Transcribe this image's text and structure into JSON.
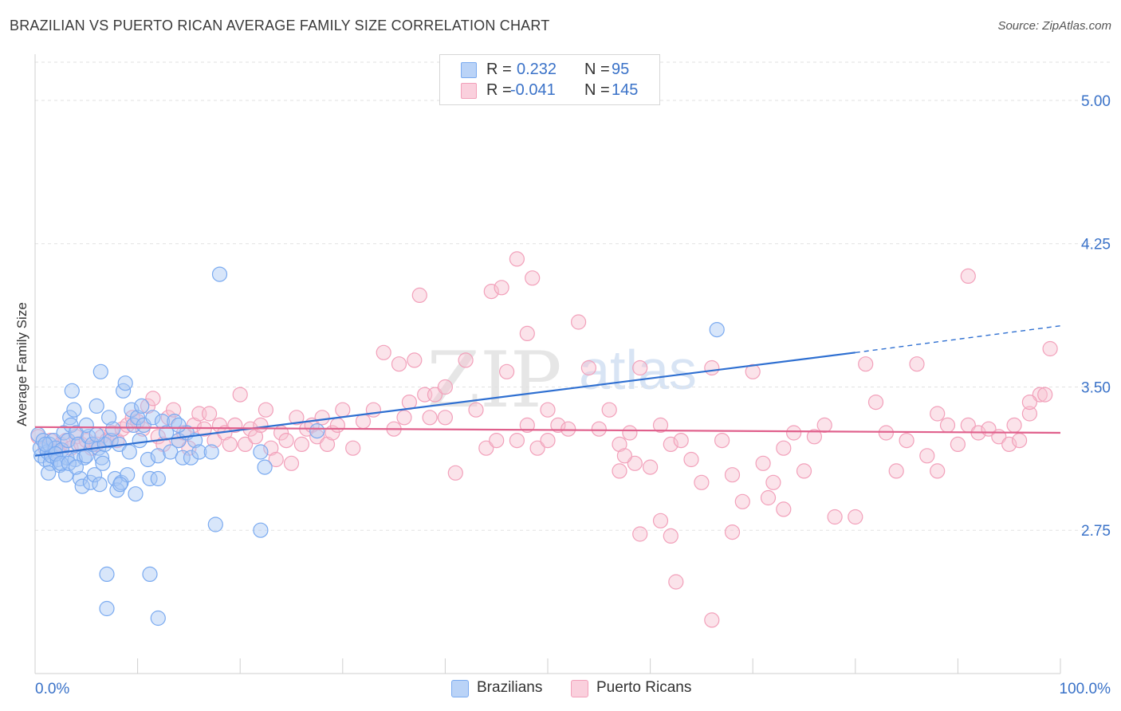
{
  "title": "BRAZILIAN VS PUERTO RICAN AVERAGE FAMILY SIZE CORRELATION CHART",
  "source": "Source: ZipAtlas.com",
  "watermark": {
    "zip": "ZIP",
    "atlas": "atlas"
  },
  "legend_top": [
    {
      "r_label": "R =",
      "r_value": "0.232",
      "n_label": "N =",
      "n_value": "95",
      "color": "#7aaaf0"
    },
    {
      "r_label": "R =",
      "r_value": "-0.041",
      "n_label": "N =",
      "n_value": "145",
      "color": "#f5a3bd"
    }
  ],
  "colors": {
    "blue_fill": "#a9c8f5",
    "blue_stroke": "#7aaaf0",
    "blue_line": "#2e6fd1",
    "pink_fill": "#f7c0d1",
    "pink_stroke": "#f2a0ba",
    "pink_line": "#e0608c",
    "axis_text": "#3a72c8",
    "grid": "#e2e2e2"
  },
  "chart_data": {
    "type": "scatter",
    "title": "BRAZILIAN VS PUERTO RICAN AVERAGE FAMILY SIZE CORRELATION CHART",
    "xlabel": "",
    "ylabel": "Average Family Size",
    "xlim": [
      0,
      100
    ],
    "ylim": [
      2.0,
      5.2
    ],
    "x_tick_labels": [
      "0.0%",
      "100.0%"
    ],
    "y_ticks": [
      2.75,
      3.5,
      4.25,
      5.0
    ],
    "y_tick_labels": [
      "2.75",
      "3.50",
      "4.25",
      "5.00"
    ],
    "grid": true,
    "legend_placement": "top-center",
    "series": [
      {
        "name": "Brazilians",
        "r": 0.232,
        "n": 95,
        "trend": {
          "x0": 0,
          "y0": 3.14,
          "x1": 80,
          "y1": 3.68,
          "dashed_to_x": 100,
          "dashed_y": 3.82
        },
        "points": [
          [
            0.3,
            3.25
          ],
          [
            0.5,
            3.18
          ],
          [
            0.6,
            3.14
          ],
          [
            0.8,
            3.22
          ],
          [
            1.0,
            3.12
          ],
          [
            1.2,
            3.16
          ],
          [
            1.4,
            3.2
          ],
          [
            1.5,
            3.1
          ],
          [
            1.6,
            3.14
          ],
          [
            1.8,
            3.22
          ],
          [
            2.0,
            3.18
          ],
          [
            2.2,
            3.12
          ],
          [
            2.4,
            3.09
          ],
          [
            2.6,
            3.17
          ],
          [
            2.8,
            3.26
          ],
          [
            3.0,
            3.04
          ],
          [
            3.1,
            3.13
          ],
          [
            3.2,
            3.22
          ],
          [
            3.4,
            3.34
          ],
          [
            3.5,
            3.3
          ],
          [
            3.6,
            3.48
          ],
          [
            3.8,
            3.38
          ],
          [
            3.9,
            3.12
          ],
          [
            4.0,
            3.26
          ],
          [
            4.2,
            3.2
          ],
          [
            4.4,
            3.02
          ],
          [
            4.6,
            2.98
          ],
          [
            4.8,
            3.13
          ],
          [
            5.0,
            3.14
          ],
          [
            5.2,
            3.24
          ],
          [
            5.4,
            3.0
          ],
          [
            5.6,
            3.2
          ],
          [
            5.8,
            3.04
          ],
          [
            6.0,
            3.4
          ],
          [
            6.2,
            3.18
          ],
          [
            6.4,
            3.58
          ],
          [
            6.5,
            3.13
          ],
          [
            6.6,
            3.1
          ],
          [
            6.8,
            3.2
          ],
          [
            7.0,
            2.52
          ],
          [
            7.2,
            3.34
          ],
          [
            7.4,
            3.22
          ],
          [
            7.6,
            3.28
          ],
          [
            7.8,
            3.02
          ],
          [
            8.0,
            2.96
          ],
          [
            8.2,
            3.2
          ],
          [
            8.4,
            3.0
          ],
          [
            8.6,
            3.48
          ],
          [
            8.8,
            3.52
          ],
          [
            9.0,
            3.04
          ],
          [
            9.2,
            3.16
          ],
          [
            9.4,
            3.38
          ],
          [
            9.6,
            3.3
          ],
          [
            9.8,
            2.94
          ],
          [
            10.0,
            3.34
          ],
          [
            10.2,
            3.22
          ],
          [
            10.4,
            3.4
          ],
          [
            10.6,
            3.3
          ],
          [
            11.0,
            3.12
          ],
          [
            11.2,
            3.02
          ],
          [
            11.5,
            3.34
          ],
          [
            12.0,
            3.14
          ],
          [
            12.4,
            3.32
          ],
          [
            12.8,
            3.26
          ],
          [
            13.2,
            3.16
          ],
          [
            13.6,
            3.32
          ],
          [
            14.0,
            3.22
          ],
          [
            14.4,
            3.13
          ],
          [
            14.8,
            3.26
          ],
          [
            15.2,
            3.13
          ],
          [
            15.6,
            3.22
          ],
          [
            16.0,
            3.16
          ],
          [
            18.0,
            4.09
          ],
          [
            17.2,
            3.16
          ],
          [
            7.0,
            2.34
          ],
          [
            11.2,
            2.52
          ],
          [
            12.0,
            2.29
          ],
          [
            17.6,
            2.78
          ],
          [
            22.0,
            3.16
          ],
          [
            22.4,
            3.08
          ],
          [
            22.0,
            2.75
          ],
          [
            27.5,
            3.27
          ],
          [
            66.5,
            3.8
          ],
          [
            1.0,
            3.2
          ],
          [
            2.0,
            3.15
          ],
          [
            2.5,
            3.1
          ],
          [
            1.3,
            3.05
          ],
          [
            3.3,
            3.1
          ],
          [
            5.0,
            3.3
          ],
          [
            6.0,
            3.25
          ],
          [
            4.0,
            3.08
          ],
          [
            6.3,
            2.99
          ],
          [
            8.3,
            2.99
          ],
          [
            12.0,
            3.02
          ],
          [
            14.0,
            3.3
          ]
        ]
      },
      {
        "name": "Puerto Ricans",
        "r": -0.041,
        "n": 145,
        "trend": {
          "x0": 0,
          "y0": 3.29,
          "x1": 100,
          "y1": 3.26
        },
        "points": [
          [
            0.3,
            3.24
          ],
          [
            1.0,
            3.18
          ],
          [
            1.5,
            3.22
          ],
          [
            2.0,
            3.16
          ],
          [
            2.5,
            3.2
          ],
          [
            3.0,
            3.22
          ],
          [
            3.5,
            3.18
          ],
          [
            4.0,
            3.24
          ],
          [
            4.5,
            3.2
          ],
          [
            5.0,
            3.22
          ],
          [
            5.5,
            3.18
          ],
          [
            6.0,
            3.2
          ],
          [
            6.5,
            3.24
          ],
          [
            7.0,
            3.22
          ],
          [
            7.5,
            3.26
          ],
          [
            8.0,
            3.22
          ],
          [
            8.5,
            3.28
          ],
          [
            9.0,
            3.3
          ],
          [
            9.5,
            3.34
          ],
          [
            10.0,
            3.32
          ],
          [
            10.5,
            3.28
          ],
          [
            11.0,
            3.4
          ],
          [
            11.5,
            3.44
          ],
          [
            12.0,
            3.24
          ],
          [
            12.5,
            3.2
          ],
          [
            13.0,
            3.34
          ],
          [
            13.5,
            3.38
          ],
          [
            14.0,
            3.22
          ],
          [
            14.5,
            3.26
          ],
          [
            15.0,
            3.18
          ],
          [
            15.5,
            3.3
          ],
          [
            16.0,
            3.36
          ],
          [
            16.5,
            3.28
          ],
          [
            17.0,
            3.36
          ],
          [
            17.5,
            3.22
          ],
          [
            18.0,
            3.3
          ],
          [
            18.5,
            3.26
          ],
          [
            19.0,
            3.2
          ],
          [
            19.5,
            3.3
          ],
          [
            20.0,
            3.46
          ],
          [
            20.5,
            3.2
          ],
          [
            21.0,
            3.28
          ],
          [
            21.5,
            3.24
          ],
          [
            22.0,
            3.3
          ],
          [
            22.5,
            3.38
          ],
          [
            23.0,
            3.18
          ],
          [
            23.5,
            3.12
          ],
          [
            24.0,
            3.26
          ],
          [
            24.5,
            3.22
          ],
          [
            25.0,
            3.1
          ],
          [
            25.5,
            3.34
          ],
          [
            26.0,
            3.2
          ],
          [
            26.5,
            3.28
          ],
          [
            27.0,
            3.3
          ],
          [
            27.5,
            3.24
          ],
          [
            28.0,
            3.34
          ],
          [
            28.5,
            3.2
          ],
          [
            29.0,
            3.26
          ],
          [
            29.5,
            3.3
          ],
          [
            30.0,
            3.38
          ],
          [
            31.0,
            3.18
          ],
          [
            32.0,
            3.32
          ],
          [
            33.0,
            3.38
          ],
          [
            34.0,
            3.68
          ],
          [
            35.0,
            3.28
          ],
          [
            36.0,
            3.34
          ],
          [
            36.5,
            3.42
          ],
          [
            37.0,
            3.64
          ],
          [
            38.0,
            3.46
          ],
          [
            38.5,
            3.34
          ],
          [
            39.0,
            3.46
          ],
          [
            40.0,
            3.34
          ],
          [
            41.0,
            3.05
          ],
          [
            42.0,
            3.64
          ],
          [
            43.0,
            3.38
          ],
          [
            44.0,
            3.18
          ],
          [
            45.0,
            3.22
          ],
          [
            46.0,
            3.58
          ],
          [
            47.0,
            3.22
          ],
          [
            48.0,
            3.3
          ],
          [
            49.0,
            3.18
          ],
          [
            50.0,
            3.22
          ],
          [
            51.0,
            3.3
          ],
          [
            52.0,
            3.28
          ],
          [
            53.0,
            3.84
          ],
          [
            54.0,
            3.6
          ],
          [
            55.0,
            3.28
          ],
          [
            56.0,
            3.38
          ],
          [
            57.0,
            3.2
          ],
          [
            58.0,
            3.26
          ],
          [
            59.0,
            3.6
          ],
          [
            60.0,
            3.08
          ],
          [
            61.0,
            3.3
          ],
          [
            62.0,
            3.2
          ],
          [
            63.0,
            3.22
          ],
          [
            64.0,
            3.12
          ],
          [
            65.0,
            3.0
          ],
          [
            66.0,
            3.6
          ],
          [
            67.0,
            3.22
          ],
          [
            68.0,
            3.04
          ],
          [
            69.0,
            2.9
          ],
          [
            70.0,
            3.58
          ],
          [
            71.0,
            3.1
          ],
          [
            72.0,
            3.0
          ],
          [
            73.0,
            3.18
          ],
          [
            74.0,
            3.26
          ],
          [
            75.0,
            3.06
          ],
          [
            76.0,
            3.24
          ],
          [
            77.0,
            3.3
          ],
          [
            78.0,
            2.82
          ],
          [
            80.0,
            2.82
          ],
          [
            81.0,
            3.62
          ],
          [
            82.0,
            3.42
          ],
          [
            83.0,
            3.26
          ],
          [
            84.0,
            3.06
          ],
          [
            85.0,
            3.22
          ],
          [
            86.0,
            3.62
          ],
          [
            87.0,
            3.14
          ],
          [
            88.0,
            3.06
          ],
          [
            89.0,
            3.3
          ],
          [
            90.0,
            3.2
          ],
          [
            91.0,
            3.3
          ],
          [
            92.0,
            3.26
          ],
          [
            93.0,
            3.28
          ],
          [
            94.0,
            3.24
          ],
          [
            95.0,
            3.2
          ],
          [
            96.0,
            3.22
          ],
          [
            97.0,
            3.36
          ],
          [
            98.0,
            3.46
          ],
          [
            99.0,
            3.7
          ],
          [
            44.5,
            4.0
          ],
          [
            45.5,
            4.02
          ],
          [
            47.0,
            4.17
          ],
          [
            48.5,
            4.07
          ],
          [
            58.5,
            3.1
          ],
          [
            35.5,
            3.62
          ],
          [
            37.5,
            3.98
          ],
          [
            40.0,
            3.5
          ],
          [
            48.0,
            3.78
          ],
          [
            50.0,
            3.38
          ],
          [
            57.0,
            3.06
          ],
          [
            61.0,
            2.8
          ],
          [
            59.0,
            2.73
          ],
          [
            57.5,
            3.14
          ],
          [
            62.0,
            2.72
          ],
          [
            62.5,
            2.48
          ],
          [
            66.0,
            2.28
          ],
          [
            68.0,
            2.74
          ],
          [
            71.5,
            2.92
          ],
          [
            73.0,
            2.86
          ],
          [
            88.0,
            3.36
          ],
          [
            91.0,
            4.08
          ],
          [
            95.5,
            3.3
          ],
          [
            97.0,
            3.42
          ],
          [
            98.5,
            3.46
          ]
        ]
      }
    ]
  },
  "bottom_legend": [
    {
      "label": "Brazilians",
      "color": "#a9c8f5",
      "stroke": "#7aaaf0"
    },
    {
      "label": "Puerto Ricans",
      "color": "#f7c0d1",
      "stroke": "#f2a0ba"
    }
  ]
}
